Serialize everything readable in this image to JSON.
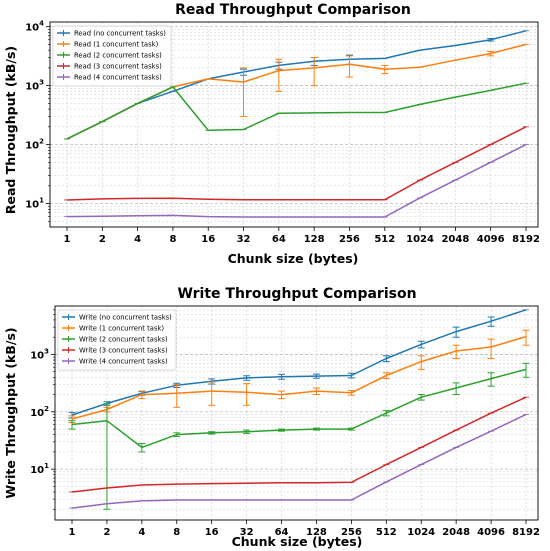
{
  "chart_data": [
    {
      "type": "line",
      "title": "Read Throughput Comparison",
      "xlabel": "Chunk size (bytes)",
      "ylabel": "Read Throughput (kB/s)",
      "x": [
        1,
        2,
        4,
        8,
        16,
        32,
        64,
        128,
        256,
        512,
        1024,
        2048,
        4096,
        8192
      ],
      "x_tick_labels": [
        "1",
        "2",
        "4",
        "8",
        "16",
        "32",
        "64",
        "128",
        "256",
        "512",
        "1024",
        "2048",
        "4096",
        "8192"
      ],
      "y_scale": "log",
      "ylim": [
        4,
        12000
      ],
      "y_tick_labels": [
        "10^1",
        "10^2",
        "10^3",
        "10^4"
      ],
      "grid": true,
      "legend_position": "top-left",
      "series": [
        {
          "name": "Read (no concurrent tasks)",
          "color": "#1f77b4",
          "values": [
            125,
            245,
            500,
            800,
            1300,
            1700,
            2200,
            2600,
            2800,
            2900,
            4000,
            4800,
            6000,
            8500
          ],
          "err": [
            0,
            0,
            0,
            0,
            0,
            200,
            300,
            400,
            500,
            0,
            0,
            0,
            300,
            0
          ]
        },
        {
          "name": "Read (1 concurrent task)",
          "color": "#ff7f0e",
          "values": [
            125,
            245,
            500,
            950,
            1300,
            1150,
            1800,
            2000,
            2300,
            1900,
            2050,
            2700,
            3500,
            5000
          ],
          "err": [
            0,
            0,
            0,
            0,
            0,
            850,
            1000,
            1000,
            900,
            300,
            0,
            0,
            300,
            0
          ]
        },
        {
          "name": "Read (2 concurrent tasks)",
          "color": "#2ca02c",
          "values": [
            125,
            245,
            500,
            950,
            175,
            180,
            340,
            345,
            350,
            350,
            480,
            640,
            830,
            1100
          ],
          "err": [
            0,
            0,
            0,
            0,
            0,
            0,
            0,
            0,
            0,
            0,
            0,
            0,
            0,
            0
          ]
        },
        {
          "name": "Read (3 concurrent tasks)",
          "color": "#d62728",
          "values": [
            11.5,
            12,
            12.2,
            12.3,
            11.8,
            11.6,
            11.6,
            11.6,
            11.6,
            11.6,
            25,
            50,
            100,
            200
          ],
          "err": [
            0,
            0,
            0,
            0,
            0,
            0,
            0,
            0,
            0,
            0,
            0,
            0,
            0,
            0
          ]
        },
        {
          "name": "Read (4 concurrent tasks)",
          "color": "#9467bd",
          "values": [
            6,
            6.1,
            6.2,
            6.3,
            6.0,
            5.9,
            5.9,
            5.9,
            5.9,
            5.9,
            12.5,
            25,
            50,
            100
          ],
          "err": [
            0,
            0,
            0,
            0,
            0,
            0,
            0,
            0,
            0,
            0,
            0,
            0,
            0,
            0
          ]
        }
      ]
    },
    {
      "type": "line",
      "title": "Write Throughput Comparison",
      "xlabel": "Chunk size (bytes)",
      "ylabel": "Write Throughput (kB/s)",
      "x": [
        1,
        2,
        4,
        8,
        16,
        32,
        64,
        128,
        256,
        512,
        1024,
        2048,
        4096,
        8192
      ],
      "x_tick_labels": [
        "1",
        "2",
        "4",
        "8",
        "16",
        "32",
        "64",
        "128",
        "256",
        "512",
        "1024",
        "2048",
        "4096",
        "8192"
      ],
      "y_scale": "log",
      "ylim": [
        1.3,
        7000
      ],
      "y_tick_labels": [
        "10^1",
        "10^2",
        "10^3"
      ],
      "grid": true,
      "legend_position": "top-left",
      "series": [
        {
          "name": "Write (no concurrent tasks)",
          "color": "#1f77b4",
          "values": [
            88,
            140,
            210,
            290,
            340,
            390,
            410,
            420,
            430,
            850,
            1500,
            2500,
            3800,
            6000
          ],
          "err": [
            10,
            10,
            15,
            25,
            35,
            35,
            40,
            35,
            40,
            100,
            200,
            500,
            700,
            0
          ]
        },
        {
          "name": "Write (1 concurrent task)",
          "color": "#ff7f0e",
          "values": [
            75,
            110,
            200,
            210,
            230,
            220,
            200,
            230,
            215,
            430,
            750,
            1150,
            1350,
            2050
          ],
          "err": [
            10,
            10,
            30,
            90,
            100,
            90,
            30,
            30,
            20,
            50,
            200,
            300,
            500,
            600
          ]
        },
        {
          "name": "Write (2 concurrent tasks)",
          "color": "#2ca02c",
          "values": [
            60,
            70,
            24,
            40,
            43,
            45,
            48,
            50,
            50,
            95,
            180,
            260,
            380,
            550
          ],
          "err": [
            10,
            68,
            4,
            3,
            2,
            3,
            2,
            2,
            2,
            10,
            20,
            60,
            100,
            150
          ]
        },
        {
          "name": "Write (3 concurrent tasks)",
          "color": "#d62728",
          "values": [
            4,
            4.7,
            5.3,
            5.5,
            5.6,
            5.7,
            5.8,
            5.8,
            5.9,
            12,
            24,
            48,
            95,
            180
          ],
          "err": [
            0,
            0,
            0,
            0,
            0,
            0,
            0,
            0,
            0,
            0,
            0,
            0,
            0,
            0
          ]
        },
        {
          "name": "Write (4 concurrent tasks)",
          "color": "#9467bd",
          "values": [
            2.1,
            2.5,
            2.8,
            2.9,
            2.9,
            2.9,
            2.9,
            2.9,
            2.9,
            6,
            12,
            24,
            46,
            90
          ],
          "err": [
            0,
            0,
            0,
            0,
            0,
            0,
            0,
            0,
            0,
            0,
            0,
            0,
            0,
            0
          ]
        }
      ]
    }
  ]
}
